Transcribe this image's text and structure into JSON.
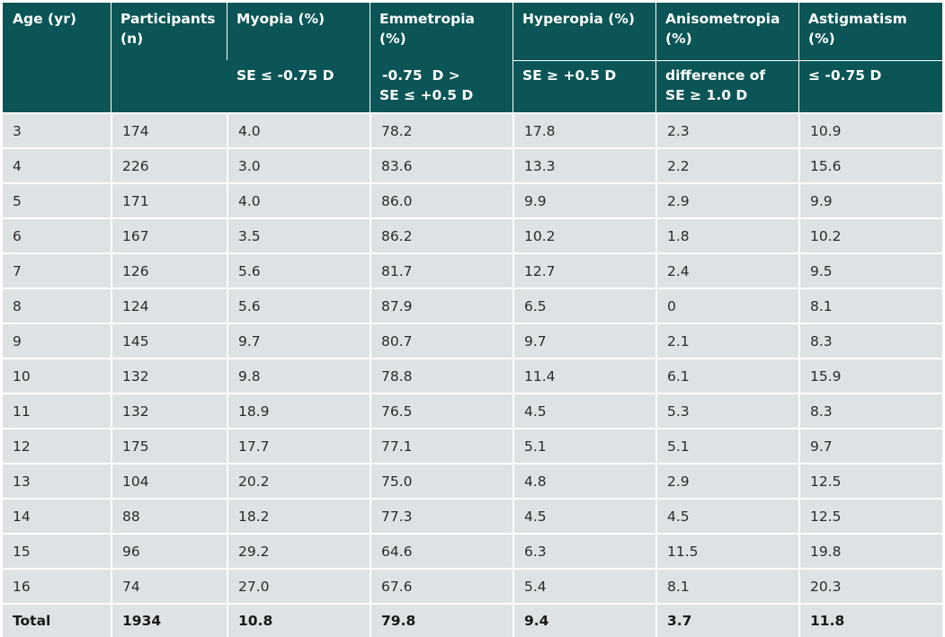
{
  "table": {
    "headers": {
      "age": "Age (yr)",
      "participants": "Participants (n)",
      "myopia": "Myopia (%)",
      "emmetropia": "Emmetropia (%)",
      "hyperopia": "Hyperopia (%)",
      "anisometropia": "Anisometropia (%)",
      "astigmatism": "Astigmatism (%)"
    },
    "subheaders": {
      "myopia": "SE ≤ -0.75 D",
      "emmetropia_line1": "-0.75  D >",
      "emmetropia_line2": "SE ≤ +0.5 D",
      "hyperopia": "SE ≥ +0.5 D",
      "anisometropia_line1": "difference of",
      "anisometropia_line2": "SE ≥ 1.0 D",
      "astigmatism": "≤ -0.75 D"
    },
    "rows": [
      [
        "3",
        "174",
        "4.0",
        "78.2",
        "17.8",
        "2.3",
        "10.9"
      ],
      [
        "4",
        "226",
        "3.0",
        "83.6",
        "13.3",
        "2.2",
        "15.6"
      ],
      [
        "5",
        "171",
        "4.0",
        "86.0",
        "9.9",
        "2.9",
        "9.9"
      ],
      [
        "6",
        "167",
        "3.5",
        "86.2",
        "10.2",
        "1.8",
        "10.2"
      ],
      [
        "7",
        "126",
        "5.6",
        "81.7",
        "12.7",
        "2.4",
        "9.5"
      ],
      [
        "8",
        "124",
        "5.6",
        "87.9",
        "6.5",
        "0",
        "8.1"
      ],
      [
        "9",
        "145",
        "9.7",
        "80.7",
        "9.7",
        "2.1",
        "8.3"
      ],
      [
        "10",
        "132",
        "9.8",
        "78.8",
        "11.4",
        "6.1",
        "15.9"
      ],
      [
        "11",
        "132",
        "18.9",
        "76.5",
        "4.5",
        "5.3",
        "8.3"
      ],
      [
        "12",
        "175",
        "17.7",
        "77.1",
        "5.1",
        "5.1",
        "9.7"
      ],
      [
        "13",
        "104",
        "20.2",
        "75.0",
        "4.8",
        "2.9",
        "12.5"
      ],
      [
        "14",
        "88",
        "18.2",
        "77.3",
        "4.5",
        "4.5",
        "12.5"
      ],
      [
        "15",
        "96",
        "29.2",
        "64.6",
        "6.3",
        "11.5",
        "19.8"
      ],
      [
        "16",
        "74",
        "27.0",
        "67.6",
        "5.4",
        "8.1",
        "20.3"
      ]
    ],
    "total": [
      "Total",
      "1934",
      "10.8",
      "79.8",
      "9.4",
      "3.7",
      "11.8"
    ]
  },
  "colors": {
    "header_bg": "#0b5556",
    "row_bg": "#dde3e4"
  }
}
